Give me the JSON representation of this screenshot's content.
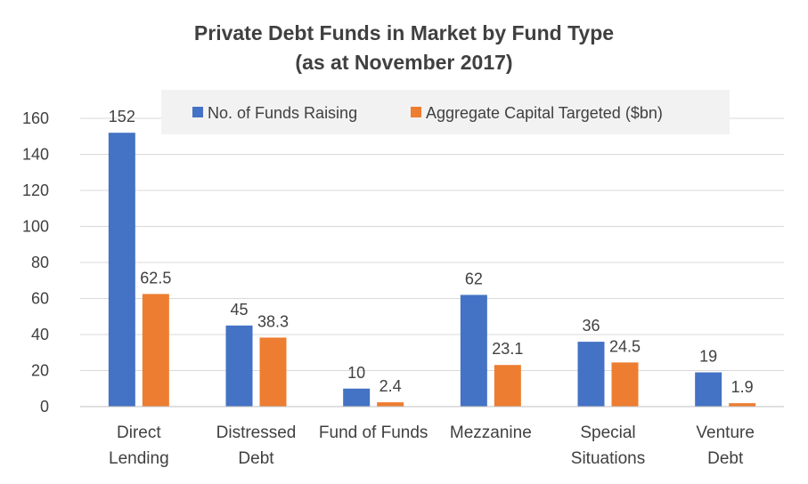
{
  "chart_data": {
    "type": "bar",
    "title": "Private Debt Funds in Market by Fund Type",
    "subtitle": "(as at November 2017)",
    "categories": [
      [
        "Direct",
        "Lending"
      ],
      [
        "Distressed",
        "Debt"
      ],
      [
        "Fund of Funds"
      ],
      [
        "Mezzanine"
      ],
      [
        "Special",
        "Situations"
      ],
      [
        "Venture",
        "Debt"
      ]
    ],
    "series": [
      {
        "name": "No. of Funds Raising",
        "color": "#4472C4",
        "values": [
          152,
          45,
          10,
          62,
          36,
          19
        ]
      },
      {
        "name": "Aggregate Capital Targeted ($bn)",
        "color": "#ED7D31",
        "values": [
          62.5,
          38.3,
          2.4,
          23.1,
          24.5,
          1.9
        ]
      }
    ],
    "ylim": [
      0,
      160
    ],
    "yticks": [
      0,
      20,
      40,
      60,
      80,
      100,
      120,
      140,
      160
    ],
    "grid": true,
    "legend_position": "top"
  }
}
